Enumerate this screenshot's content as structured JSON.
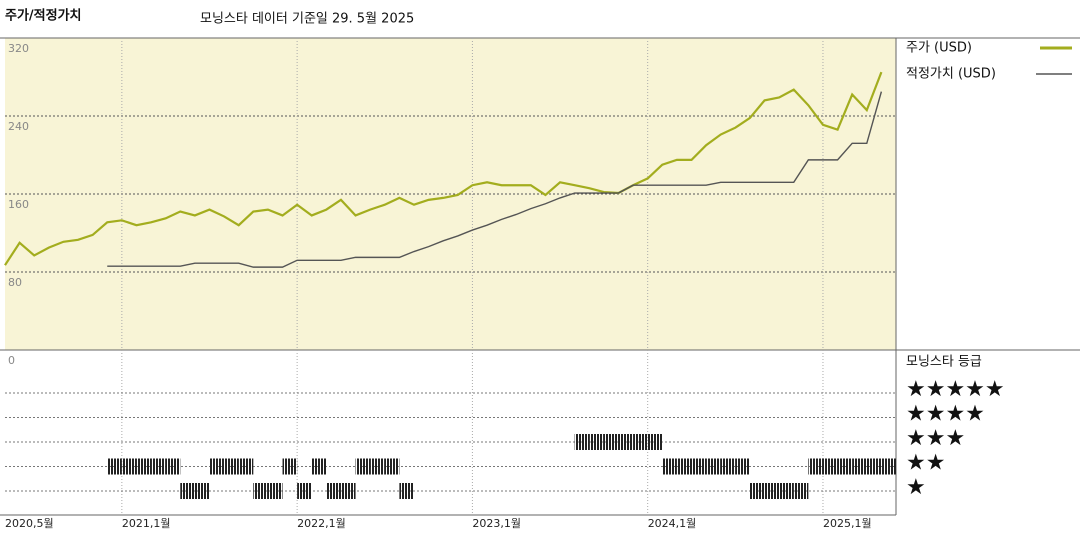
{
  "chart_data": {
    "type": "line",
    "title": "주가/적정가치",
    "subtitle": "모닝스타 데이터 기준일 29. 5월 2025",
    "x": [
      "2020-05",
      "2020-06",
      "2020-07",
      "2020-08",
      "2020-09",
      "2020-10",
      "2020-11",
      "2020-12",
      "2021-01",
      "2021-02",
      "2021-03",
      "2021-04",
      "2021-05",
      "2021-06",
      "2021-07",
      "2021-08",
      "2021-09",
      "2021-10",
      "2021-11",
      "2021-12",
      "2022-01",
      "2022-02",
      "2022-03",
      "2022-04",
      "2022-05",
      "2022-06",
      "2022-07",
      "2022-08",
      "2022-09",
      "2022-10",
      "2022-11",
      "2022-12",
      "2023-01",
      "2023-02",
      "2023-03",
      "2023-04",
      "2023-05",
      "2023-06",
      "2023-07",
      "2023-08",
      "2023-09",
      "2023-10",
      "2023-11",
      "2023-12",
      "2024-01",
      "2024-02",
      "2024-03",
      "2024-04",
      "2024-05",
      "2024-06",
      "2024-07",
      "2024-08",
      "2024-09",
      "2024-10",
      "2024-11",
      "2024-12",
      "2025-01",
      "2025-02",
      "2025-03",
      "2025-04",
      "2025-05"
    ],
    "series": [
      {
        "name": "주가 (USD)",
        "color": "#a3ad1e",
        "values": [
          87,
          110,
          97,
          105,
          111,
          113,
          118,
          131,
          133,
          128,
          131,
          135,
          142,
          138,
          144,
          137,
          128,
          142,
          144,
          138,
          149,
          138,
          144,
          154,
          138,
          144,
          149,
          156,
          149,
          154,
          156,
          159,
          169,
          172,
          169,
          169,
          169,
          159,
          172,
          169,
          166,
          162,
          161,
          169,
          176,
          190,
          195,
          195,
          210,
          221,
          228,
          238,
          256,
          259,
          267,
          251,
          231,
          226,
          262,
          246,
          285
        ]
      },
      {
        "name": "적정가치 (USD)",
        "color": "#555555",
        "values": [
          null,
          null,
          null,
          null,
          null,
          null,
          null,
          86,
          86,
          86,
          86,
          86,
          86,
          89,
          89,
          89,
          89,
          85,
          85,
          85,
          92,
          92,
          92,
          92,
          95,
          95,
          95,
          95,
          101,
          106,
          112,
          117,
          123,
          128,
          134,
          139,
          145,
          150,
          156,
          161,
          161,
          161,
          161,
          169,
          169,
          169,
          169,
          169,
          169,
          172,
          172,
          172,
          172,
          172,
          172,
          195,
          195,
          195,
          212,
          212,
          265
        ]
      }
    ],
    "xlim": [
      "2020-05",
      "2025-06"
    ],
    "xticks": [
      {
        "value": "2020-05",
        "label": "2020,5월"
      },
      {
        "value": "2021-01",
        "label": "2021,1월"
      },
      {
        "value": "2022-01",
        "label": "2022,1월"
      },
      {
        "value": "2023-01",
        "label": "2023,1월"
      },
      {
        "value": "2024-01",
        "label": "2024,1월"
      },
      {
        "value": "2025-01",
        "label": "2025,1월"
      }
    ],
    "ylim": [
      0,
      320
    ],
    "yticks": [
      0,
      80,
      160,
      240,
      320
    ],
    "background": "#f8f4d6",
    "rating": {
      "title": "모닝스타 등급",
      "levels": [
        5,
        4,
        3,
        2,
        1
      ],
      "labels": [
        "★★★★★",
        "★★★★",
        "★★★",
        "★★",
        "★"
      ],
      "color": "#222222",
      "values": [
        null,
        null,
        null,
        null,
        null,
        null,
        null,
        2,
        2,
        2,
        2,
        2,
        1,
        1,
        2,
        2,
        2,
        1,
        1,
        2,
        1,
        2,
        1,
        1,
        2,
        2,
        2,
        1,
        null,
        null,
        null,
        null,
        null,
        null,
        null,
        null,
        null,
        null,
        null,
        3,
        3,
        3,
        3,
        3,
        3,
        2,
        2,
        2,
        2,
        2,
        2,
        1,
        1,
        1,
        1,
        2,
        2,
        2,
        2,
        2,
        2
      ]
    }
  }
}
